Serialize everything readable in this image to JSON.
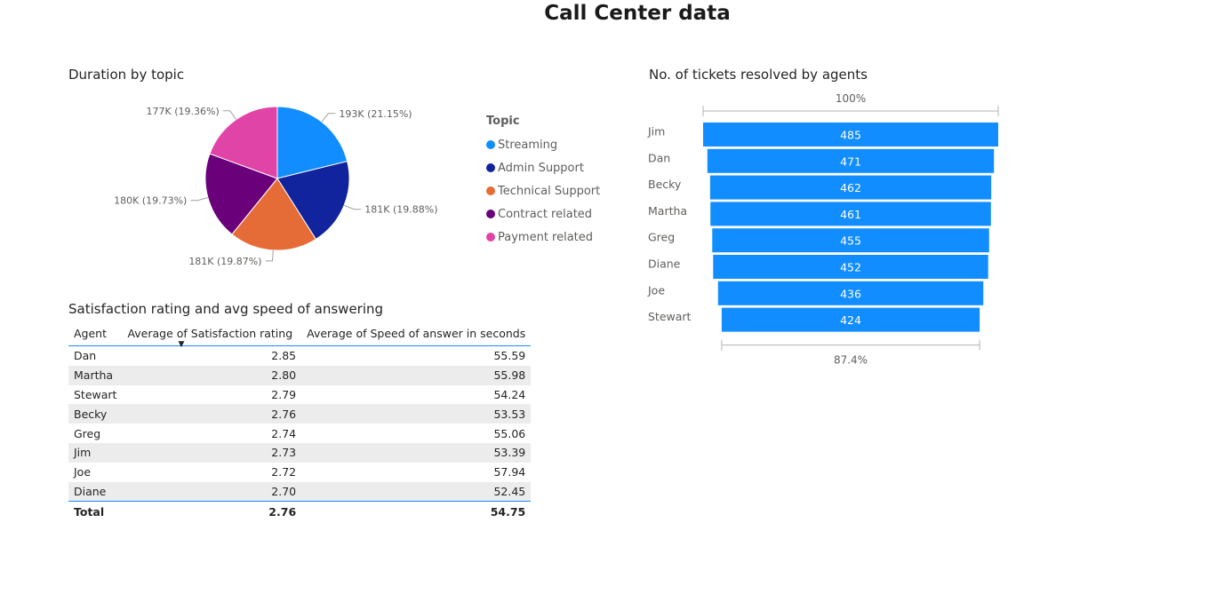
{
  "page_title": "Call Center data",
  "chart_data": [
    {
      "type": "pie",
      "title": "Duration by topic",
      "legend_title": "Topic",
      "legend_position": "right",
      "slices": [
        {
          "name": "Streaming",
          "value": 193,
          "label": "193K (21.15%)",
          "color": "#118DFF"
        },
        {
          "name": "Admin Support",
          "value": 181,
          "label": "181K (19.88%)",
          "color": "#12239E"
        },
        {
          "name": "Technical Support",
          "value": 181,
          "label": "181K (19.87%)",
          "color": "#E66C37"
        },
        {
          "name": "Contract related",
          "value": 180,
          "label": "180K (19.73%)",
          "color": "#6B007B"
        },
        {
          "name": "Payment related",
          "value": 177,
          "label": "177K (19.36%)",
          "color": "#E044A7"
        }
      ]
    },
    {
      "type": "table",
      "title": "Satisfaction rating and avg speed of answering",
      "columns": [
        "Agent",
        "Average of Satisfaction rating",
        "Average of Speed of answer in seconds"
      ],
      "rows": [
        [
          "Dan",
          "2.85",
          "55.59"
        ],
        [
          "Martha",
          "2.80",
          "55.98"
        ],
        [
          "Stewart",
          "2.79",
          "54.24"
        ],
        [
          "Becky",
          "2.76",
          "53.53"
        ],
        [
          "Greg",
          "2.74",
          "55.06"
        ],
        [
          "Jim",
          "2.73",
          "53.39"
        ],
        [
          "Joe",
          "2.72",
          "57.94"
        ],
        [
          "Diane",
          "2.70",
          "52.45"
        ]
      ],
      "total": [
        "Total",
        "2.76",
        "54.75"
      ]
    },
    {
      "type": "bar",
      "subtype": "funnel",
      "title": "No. of tickets resolved by agents",
      "categories": [
        "Jim",
        "Dan",
        "Becky",
        "Martha",
        "Greg",
        "Diane",
        "Joe",
        "Stewart"
      ],
      "values": [
        485,
        471,
        462,
        461,
        455,
        452,
        436,
        424
      ],
      "top_label": "100%",
      "bottom_label": "87.4%",
      "color": "#118DFF"
    }
  ]
}
